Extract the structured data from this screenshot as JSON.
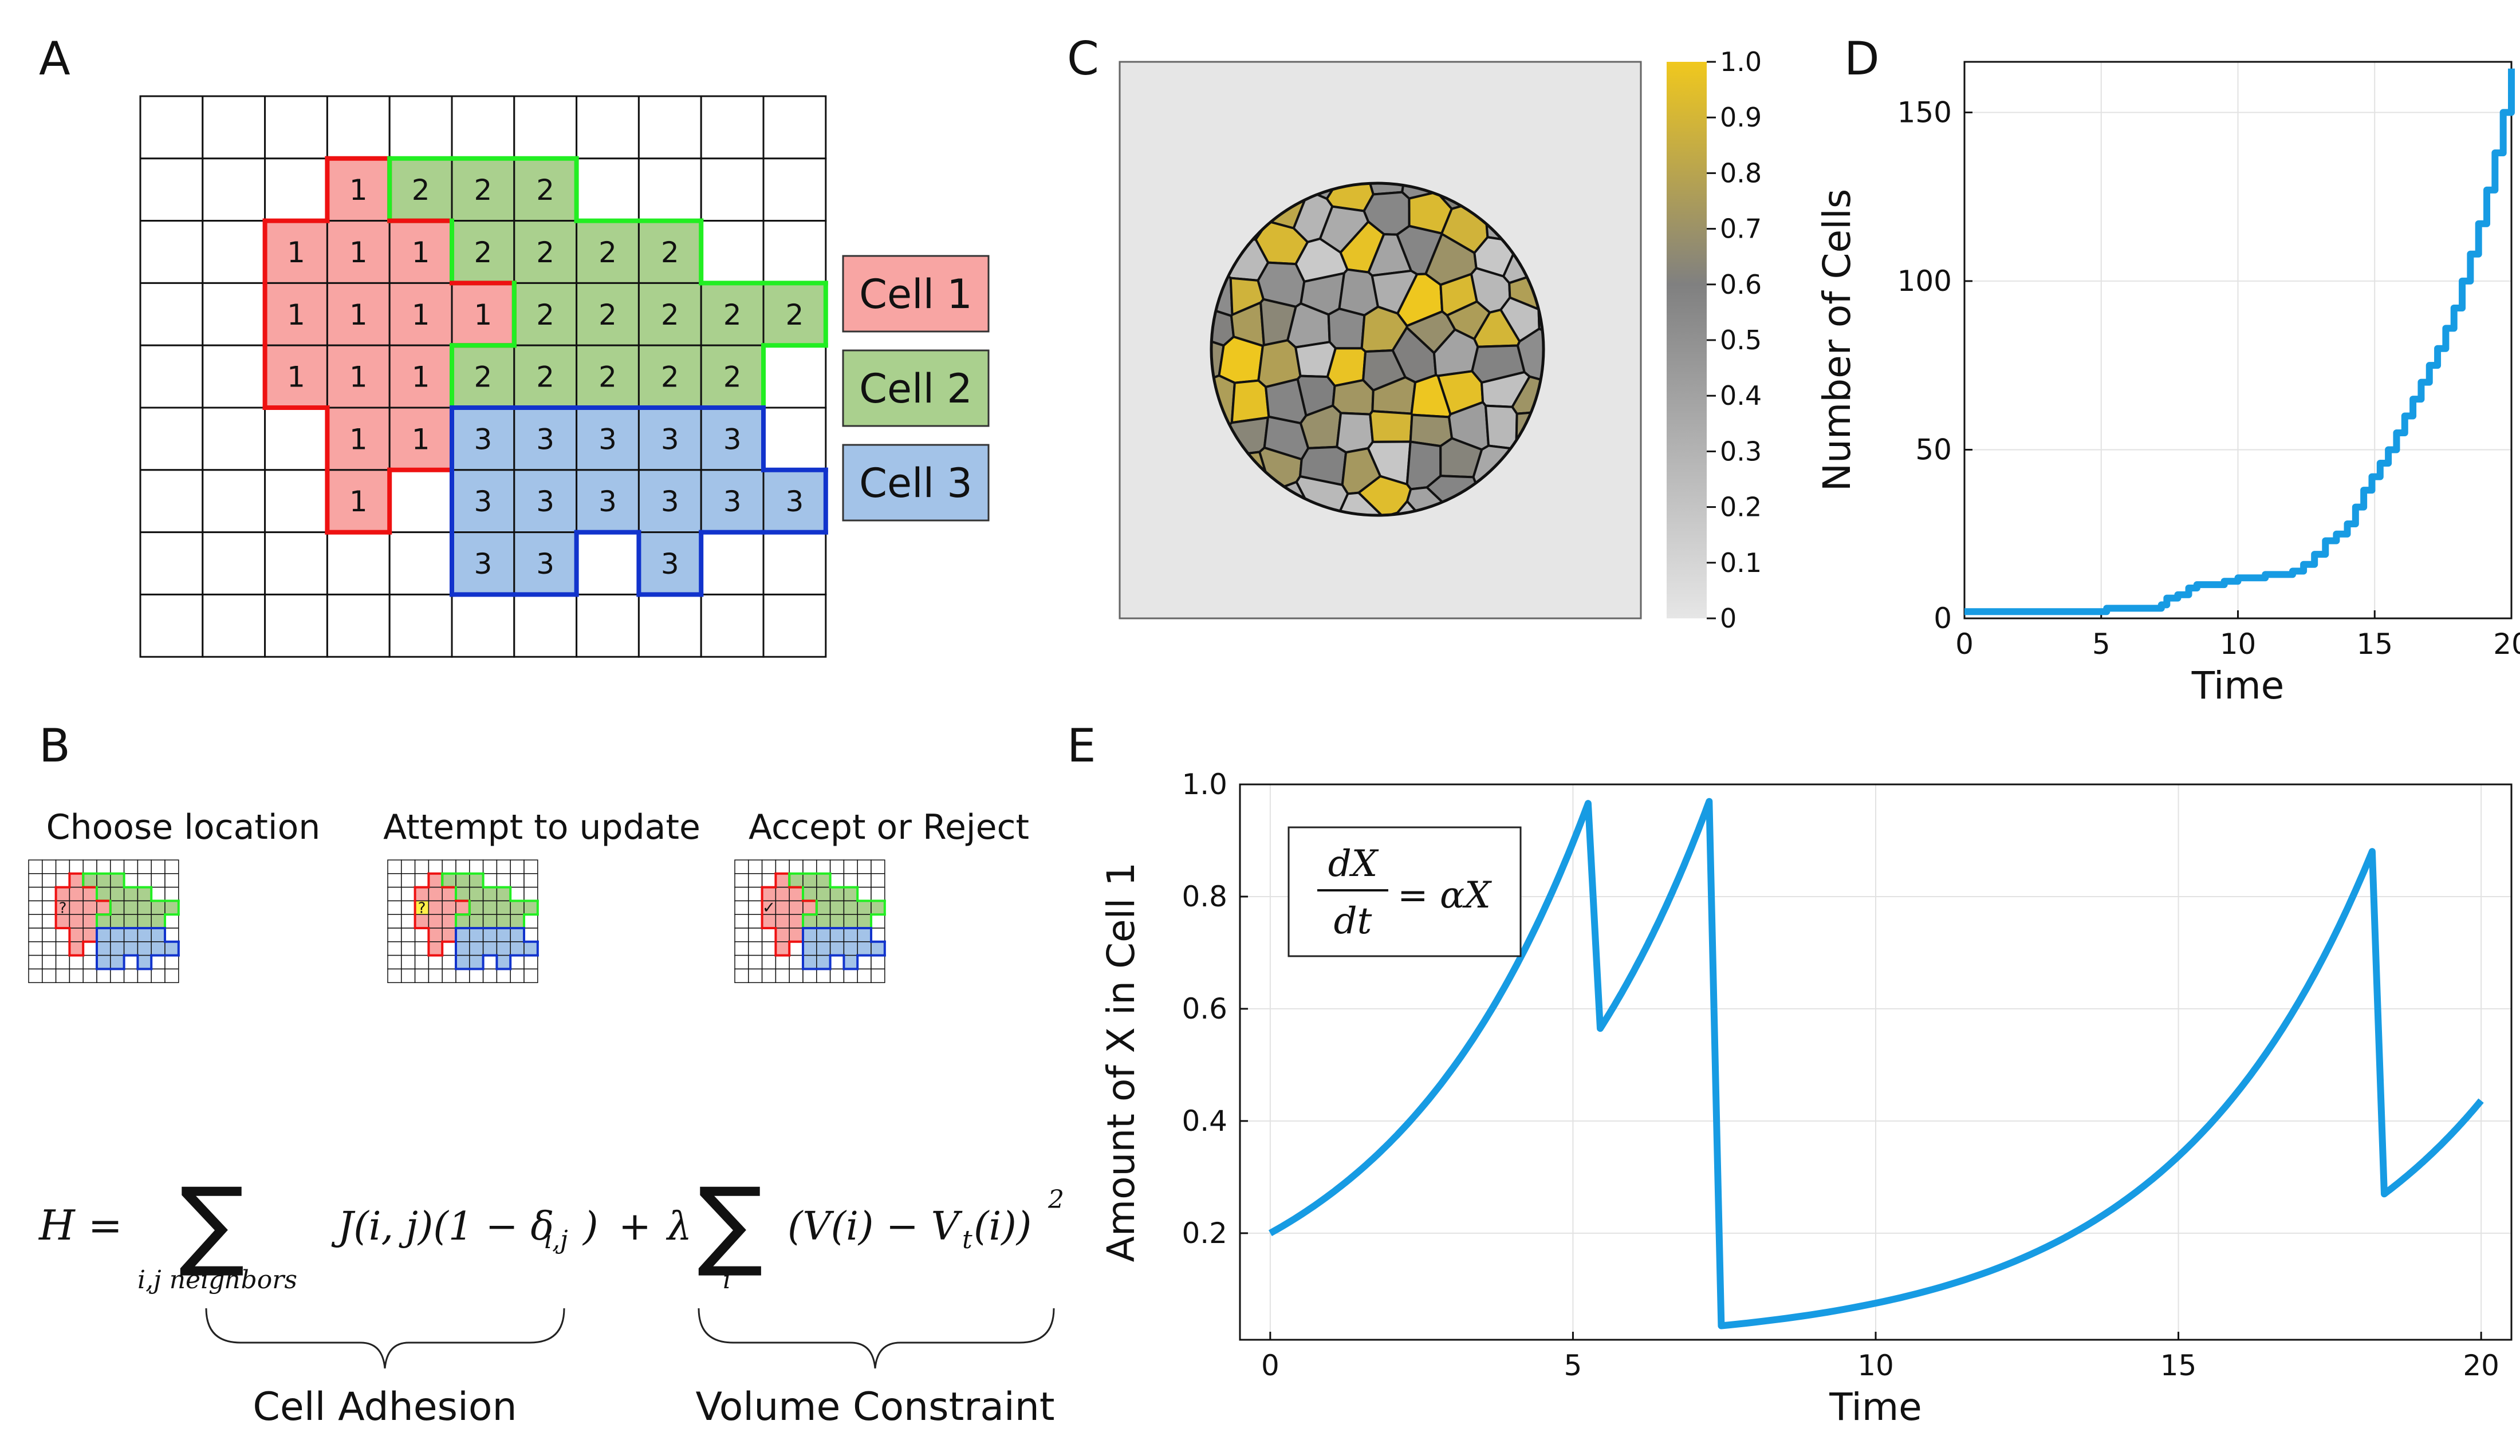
{
  "panel_letters": [
    "A",
    "B",
    "C",
    "D",
    "E"
  ],
  "colors": {
    "cell1_fill": "#f8a5a3",
    "cell1_border": "#ee1111",
    "cell2_fill": "#aad08e",
    "cell2_border": "#22ee22",
    "cell3_fill": "#a3c3e8",
    "cell3_border": "#1133cc",
    "line": "#179be3",
    "yellow": "#f0c81e",
    "gray_bg": "#e6e6e6"
  },
  "panelA": {
    "cols": 11,
    "rows": 9,
    "grid": [
      "...........",
      "...1222....",
      "..1112222..",
      "..111122222",
      "..11122222.",
      "...1133333.",
      "...1.333333",
      ".....33.3..",
      "..........."
    ],
    "legend": [
      "Cell 1",
      "Cell 2",
      "Cell 3"
    ]
  },
  "panelB": {
    "titles": [
      "Choose location",
      "Attempt to update",
      "Accept or Reject"
    ],
    "marks": [
      "?",
      "?",
      "✓"
    ],
    "braces": [
      "Cell Adhesion",
      "Volume Constraint"
    ]
  },
  "panelC": {
    "colorbar_ticks": [
      "0",
      "0.1",
      "0.2",
      "0.3",
      "0.4",
      "0.5",
      "0.6",
      "0.7",
      "0.8",
      "0.9",
      "1.0"
    ]
  },
  "chart_data": [
    {
      "type": "line",
      "panel": "D",
      "xlabel": "Time",
      "ylabel": "Number of Cells",
      "xlim": [
        0,
        20
      ],
      "ylim": [
        0,
        165
      ],
      "xticks": [
        0,
        5,
        10,
        15,
        20
      ],
      "yticks": [
        0,
        50,
        100,
        150
      ],
      "grid": true,
      "series": [
        {
          "x": [
            0,
            5,
            5.2,
            6.5,
            7.2,
            7.4,
            7.8,
            8.2,
            8.5,
            9,
            9.5,
            10,
            10.5,
            11,
            11.5,
            12,
            12.4,
            12.8,
            13.2,
            13.6,
            14,
            14.3,
            14.6,
            14.9,
            15.2,
            15.5,
            15.8,
            16.1,
            16.4,
            16.7,
            17,
            17.3,
            17.6,
            17.9,
            18.2,
            18.5,
            18.8,
            19.1,
            19.4,
            19.7,
            20
          ],
          "y": [
            2,
            2,
            3,
            3,
            4,
            6,
            7,
            9,
            10,
            10,
            11,
            12,
            12,
            13,
            13,
            14,
            16,
            19,
            23,
            25,
            28,
            33,
            38,
            42,
            46,
            50,
            55,
            60,
            65,
            70,
            75,
            80,
            86,
            92,
            100,
            108,
            117,
            127,
            138,
            150,
            163
          ]
        }
      ]
    },
    {
      "type": "line",
      "panel": "E",
      "xlabel": "Time",
      "ylabel": "Amount of X in Cell 1",
      "xlim": [
        -0.5,
        20.5
      ],
      "ylim": [
        0.01,
        1.0
      ],
      "xticks": [
        0,
        5,
        10,
        15,
        20
      ],
      "yticks": [
        0.2,
        0.4,
        0.6,
        0.8,
        1.0
      ],
      "grid": true,
      "annotation": "dX/dt = αX",
      "alpha": 0.3,
      "series": [
        {
          "segments": [
            {
              "x0": 0.0,
              "x1": 5.25,
              "y0": 0.2
            },
            {
              "x0": 5.45,
              "x1": 7.25,
              "y0": 0.565
            },
            {
              "x0": 7.45,
              "x1": 18.2,
              "y0": 0.035
            },
            {
              "x0": 18.4,
              "x1": 20.0,
              "y0": 0.27
            }
          ]
        }
      ]
    }
  ]
}
